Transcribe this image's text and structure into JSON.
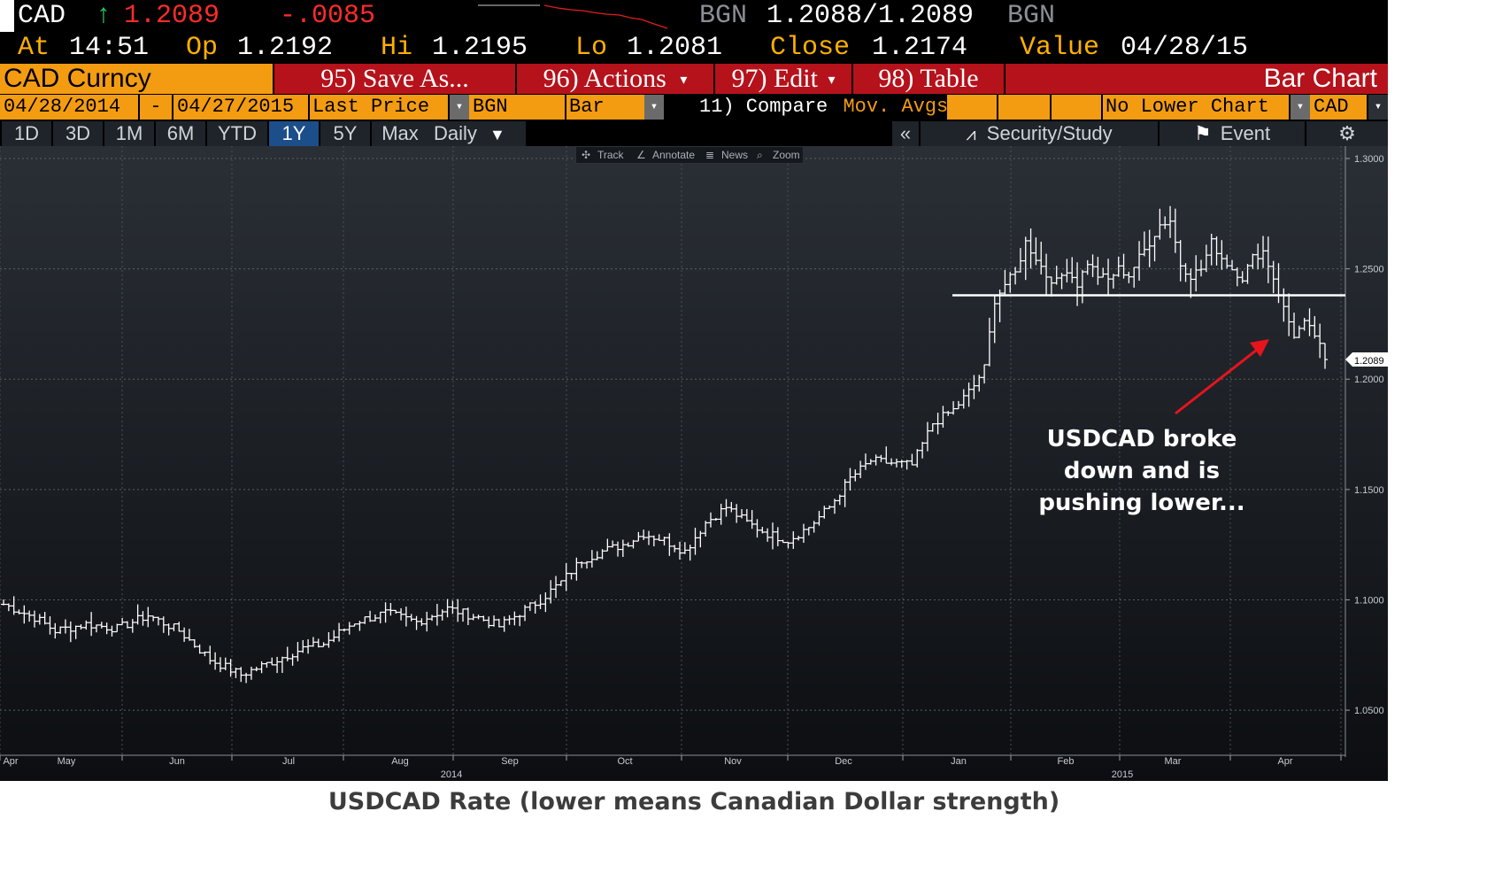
{
  "header": {
    "ticker": "CAD",
    "arrow": "↑",
    "last_price": "1.2089",
    "net_change": "-.0085",
    "bid_source": "BGN",
    "bid_ask": "1.2088/1.2089",
    "ask_source": "BGN",
    "at_label": "At",
    "at_value": "14:51",
    "op_label": "Op",
    "op_value": "1.2192",
    "hi_label": "Hi",
    "hi_value": "1.2195",
    "lo_label": "Lo",
    "lo_value": "1.2081",
    "close_label": "Close",
    "close_value": "1.2174",
    "value_label": "Value",
    "value_value": "04/28/15"
  },
  "toolbar": {
    "security": "CAD Curncy",
    "save_as": "95) Save As...",
    "actions": "96) Actions",
    "edit": "97) Edit",
    "table": "98) Table",
    "chart_type_title": "Bar Chart"
  },
  "settings": {
    "start_date": "04/28/2014",
    "dash": "-",
    "end_date": "04/27/2015",
    "field": "Last Price",
    "source": "BGN",
    "style": "Bar",
    "compare": "11) Compare",
    "mov_avgs": "Mov. Avgs",
    "lower_chart": "No Lower Chart",
    "currency": "CAD"
  },
  "periods": {
    "items": [
      "1D",
      "3D",
      "1M",
      "6M",
      "YTD",
      "1Y",
      "5Y",
      "Max"
    ],
    "active": "1Y",
    "frequency": "Daily",
    "collapse": "«",
    "security_study": "Security/Study",
    "event": "Event"
  },
  "chart_tools": {
    "track": "Track",
    "annotate": "Annotate",
    "news": "News",
    "zoom": "Zoom"
  },
  "annotation": {
    "line1": "USDCAD broke",
    "line2": "down and is",
    "line3": "pushing lower..."
  },
  "caption": "USDCAD Rate (lower means Canadian Dollar strength)",
  "colors": {
    "orange": "#f39c12",
    "red_button": "#b5121b",
    "amber_text": "#ffb000",
    "up_green": "#22c55e",
    "down_red": "#ff2b2b",
    "active_period": "#1c4f8a",
    "arrow_red": "#e8141c"
  },
  "chart_data": {
    "type": "bar",
    "title": "",
    "ylim": [
      1.04,
      1.3
    ],
    "y_ticks": [
      "1.3000",
      "1.2500",
      "1.2000",
      "1.1500",
      "1.1000",
      "1.0500"
    ],
    "x_month_labels": [
      "Apr",
      "May",
      "Jun",
      "Jul",
      "Aug",
      "Sep",
      "Oct",
      "Nov",
      "Dec",
      "Jan",
      "Feb",
      "Mar",
      "Apr"
    ],
    "x_year_labels": [
      "2014",
      "2015"
    ],
    "last_value_label": "1.2089",
    "resistance_level": 1.238,
    "close_anchors": [
      [
        0,
        1.098
      ],
      [
        6,
        1.092
      ],
      [
        10,
        1.086
      ],
      [
        16,
        1.089
      ],
      [
        22,
        1.087
      ],
      [
        28,
        1.093
      ],
      [
        34,
        1.086
      ],
      [
        40,
        1.073
      ],
      [
        46,
        1.066
      ],
      [
        52,
        1.072
      ],
      [
        58,
        1.078
      ],
      [
        62,
        1.08
      ],
      [
        68,
        1.09
      ],
      [
        74,
        1.094
      ],
      [
        80,
        1.09
      ],
      [
        86,
        1.096
      ],
      [
        92,
        1.092
      ],
      [
        96,
        1.088
      ],
      [
        100,
        1.094
      ],
      [
        104,
        1.1
      ],
      [
        108,
        1.108
      ],
      [
        112,
        1.118
      ],
      [
        116,
        1.122
      ],
      [
        120,
        1.125
      ],
      [
        124,
        1.13
      ],
      [
        128,
        1.127
      ],
      [
        132,
        1.122
      ],
      [
        136,
        1.135
      ],
      [
        140,
        1.142
      ],
      [
        144,
        1.135
      ],
      [
        148,
        1.13
      ],
      [
        152,
        1.127
      ],
      [
        156,
        1.133
      ],
      [
        160,
        1.142
      ],
      [
        164,
        1.155
      ],
      [
        168,
        1.163
      ],
      [
        172,
        1.162
      ],
      [
        176,
        1.161
      ],
      [
        180,
        1.18
      ],
      [
        184,
        1.186
      ],
      [
        188,
        1.197
      ],
      [
        190,
        1.205
      ],
      [
        192,
        1.236
      ],
      [
        194,
        1.243
      ],
      [
        196,
        1.248
      ],
      [
        198,
        1.262
      ],
      [
        200,
        1.255
      ],
      [
        202,
        1.247
      ],
      [
        204,
        1.244
      ],
      [
        206,
        1.25
      ],
      [
        208,
        1.243
      ],
      [
        210,
        1.253
      ],
      [
        212,
        1.247
      ],
      [
        214,
        1.245
      ],
      [
        216,
        1.25
      ],
      [
        218,
        1.247
      ],
      [
        220,
        1.255
      ],
      [
        222,
        1.262
      ],
      [
        224,
        1.27
      ],
      [
        226,
        1.272
      ],
      [
        228,
        1.252
      ],
      [
        230,
        1.247
      ],
      [
        232,
        1.25
      ],
      [
        234,
        1.262
      ],
      [
        236,
        1.255
      ],
      [
        238,
        1.25
      ],
      [
        240,
        1.246
      ],
      [
        242,
        1.255
      ],
      [
        244,
        1.258
      ],
      [
        246,
        1.246
      ],
      [
        248,
        1.232
      ],
      [
        250,
        1.22
      ],
      [
        252,
        1.225
      ],
      [
        254,
        1.22
      ],
      [
        256,
        1.2089
      ]
    ]
  }
}
